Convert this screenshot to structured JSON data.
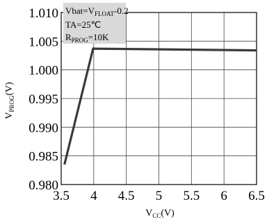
{
  "chart_data": {
    "type": "line",
    "title": "",
    "xlabel": "V",
    "xlabel_sub": "CC",
    "xlabel_unit": "(V)",
    "ylabel": "V",
    "ylabel_sub": "PROG",
    "ylabel_unit": "(V)",
    "xlim": [
      3.5,
      6.5
    ],
    "ylim": [
      0.98,
      1.01
    ],
    "x_ticks": [
      3.5,
      4,
      4.5,
      5,
      5.5,
      6,
      6.5
    ],
    "x_tick_labels": [
      "3.5",
      "4",
      "4.5",
      "5",
      "5.5",
      "6",
      "6.5"
    ],
    "y_ticks": [
      0.98,
      0.985,
      0.99,
      0.995,
      1.0,
      1.005,
      1.01
    ],
    "y_tick_labels": [
      "0.980",
      "0.985",
      "0.990",
      "0.995",
      "1.000",
      "1.005",
      "1.010"
    ],
    "grid": true,
    "series": [
      {
        "color": "#3a3a3a",
        "x": [
          3.55,
          3.99,
          6.5
        ],
        "y": [
          0.9835,
          1.0037,
          1.0034
        ]
      }
    ],
    "legend": {
      "placement": "top-left",
      "background": "#d9d9d9",
      "lines": [
        {
          "main": "Vbat=V",
          "sub": "FLOAT",
          "rest": "-0.2"
        },
        {
          "main": "TA=25℃",
          "sub": "",
          "rest": ""
        },
        {
          "main": "R",
          "sub": "PROG",
          "rest": "=10K"
        }
      ]
    }
  }
}
